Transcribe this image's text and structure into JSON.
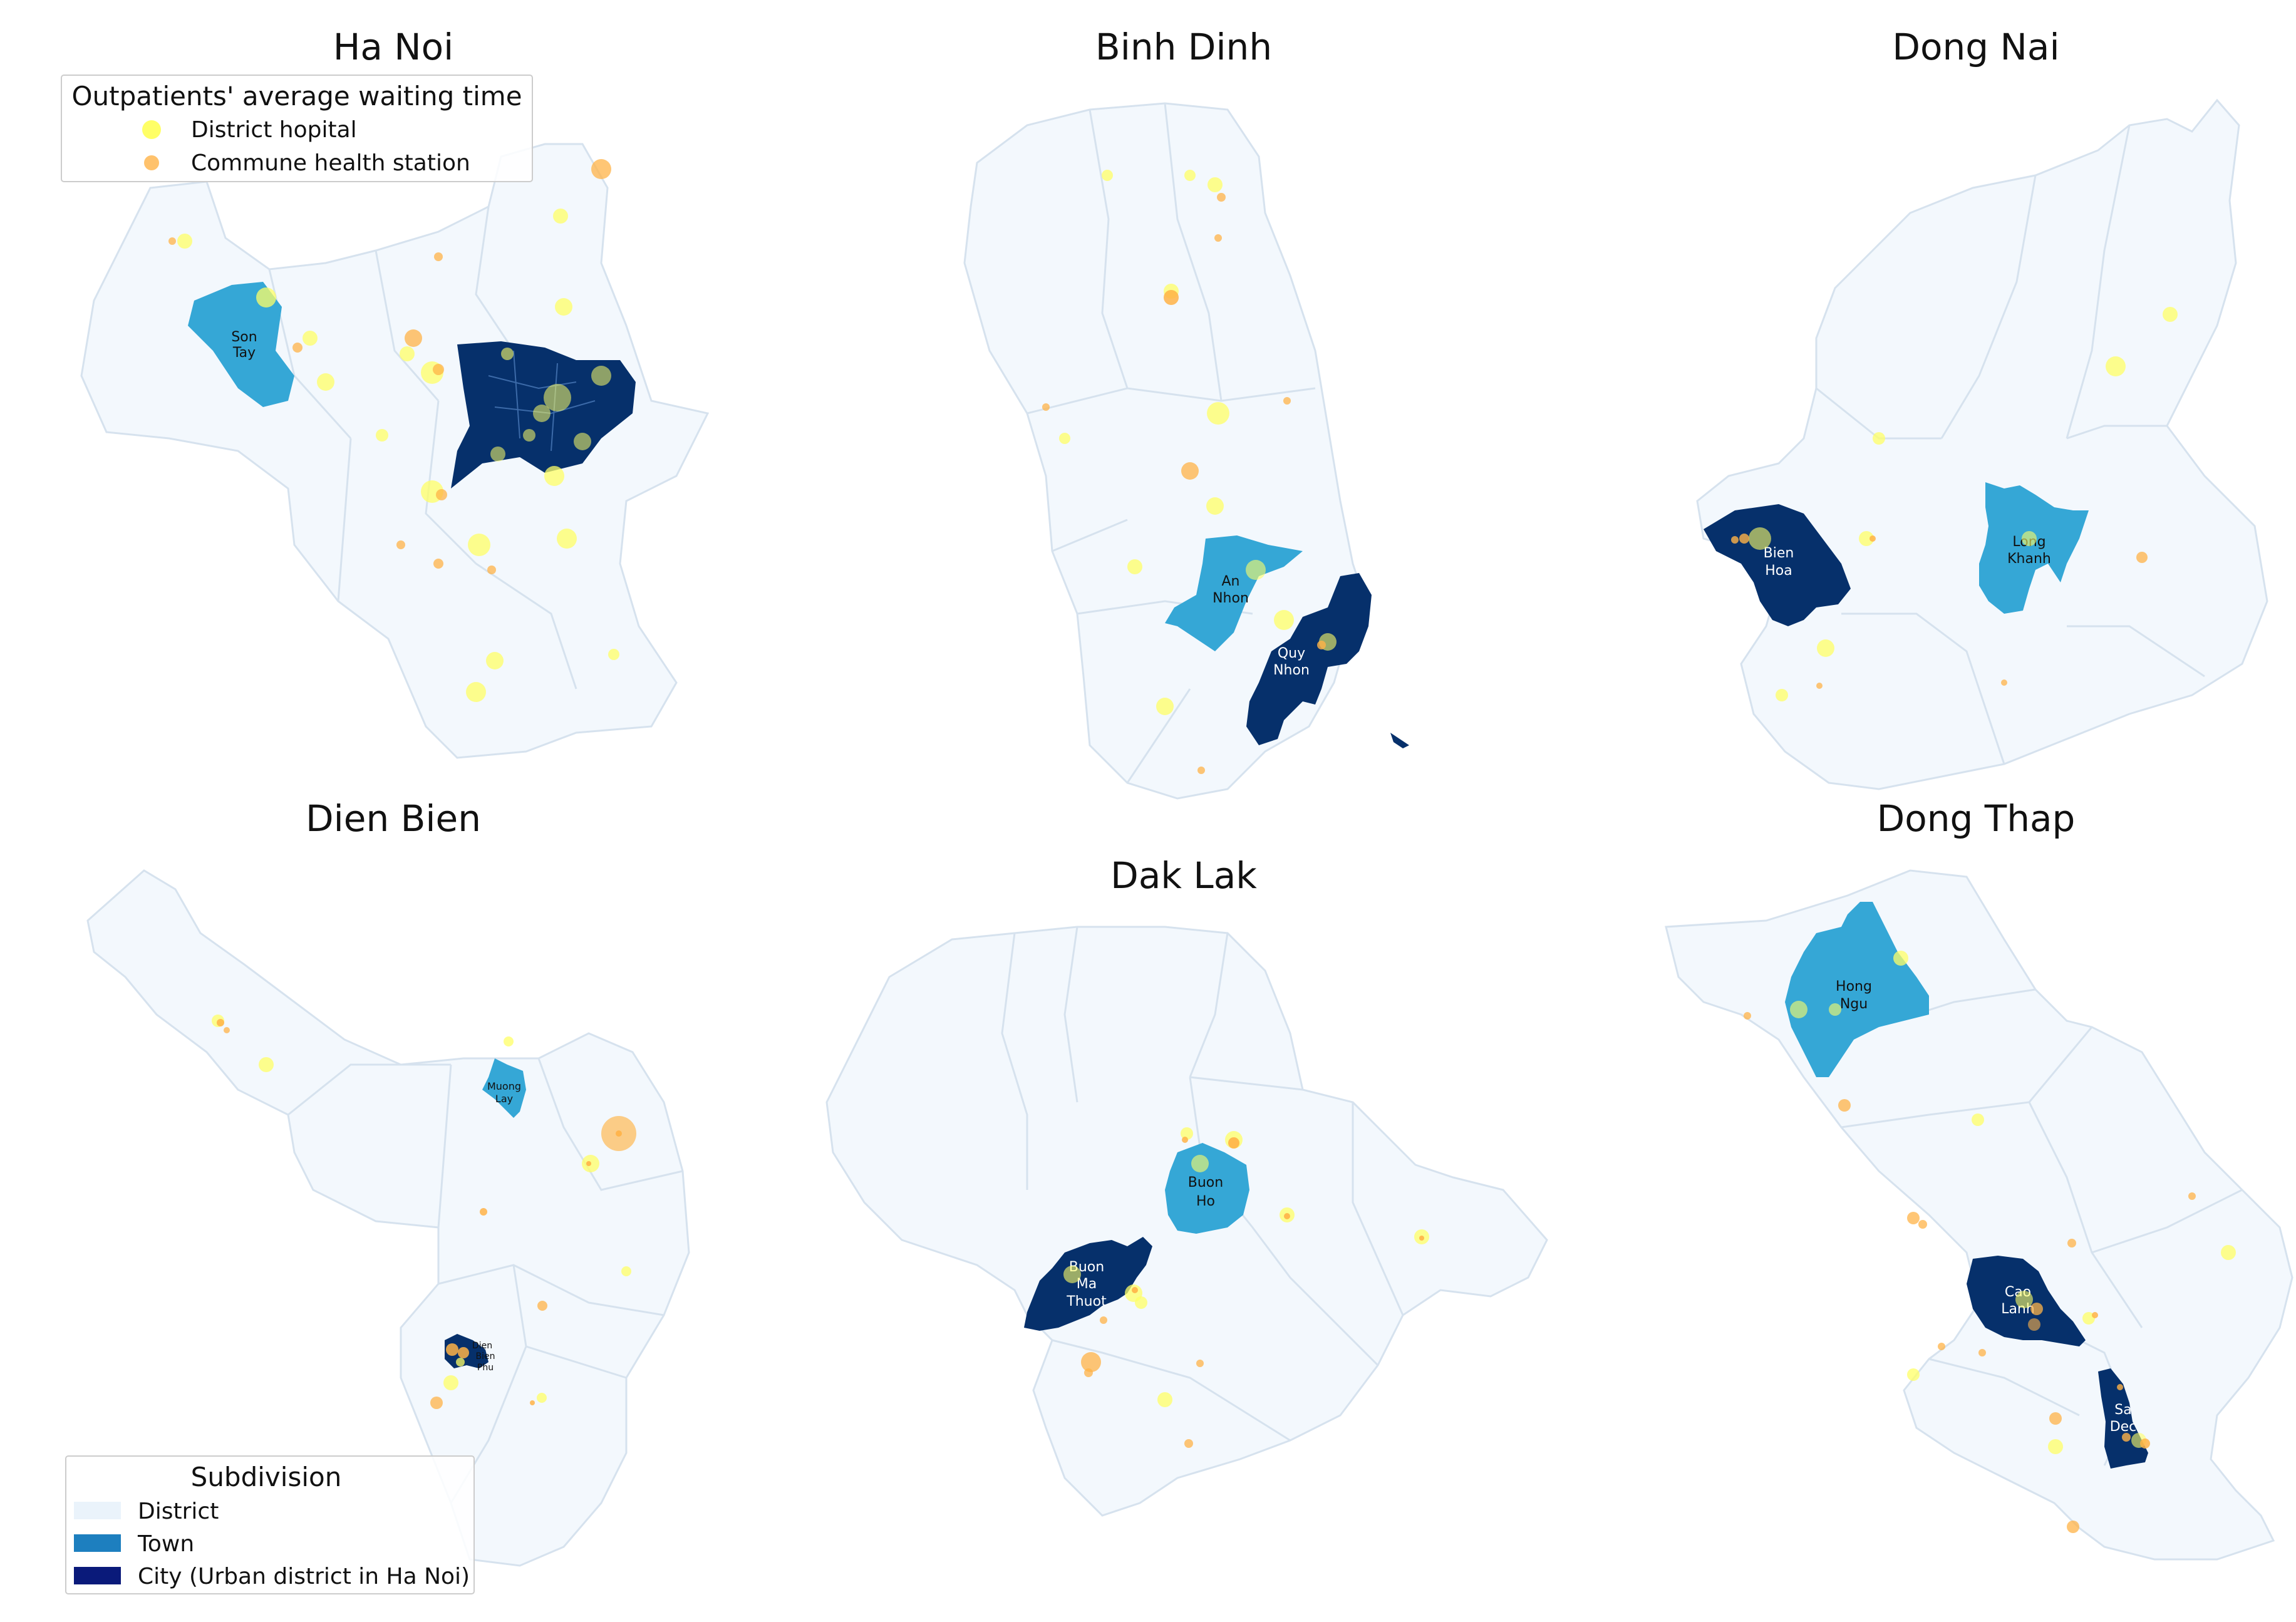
{
  "colors": {
    "district": "#f3f8fd",
    "district_edge": "#d6e2ee",
    "town": "#35a7d6",
    "city": "#06306b",
    "district_hospital": "#ffff66",
    "commune_station": "#ffb347"
  },
  "panels": [
    {
      "id": "ha-noi",
      "title": "Ha Noi",
      "places": [
        {
          "type": "town",
          "label": [
            "Son",
            "Tay"
          ]
        },
        {
          "type": "city",
          "label": []
        }
      ]
    },
    {
      "id": "binh-dinh",
      "title": "Binh Dinh",
      "places": [
        {
          "type": "town",
          "label": [
            "An",
            "Nhon"
          ]
        },
        {
          "type": "city",
          "label": [
            "Quy",
            "Nhon"
          ]
        }
      ]
    },
    {
      "id": "dong-nai",
      "title": "Dong Nai",
      "places": [
        {
          "type": "city",
          "label": [
            "Bien",
            "Hoa"
          ]
        },
        {
          "type": "town",
          "label": [
            "Long",
            "Khanh"
          ]
        }
      ]
    },
    {
      "id": "dien-bien",
      "title": "Dien Bien",
      "places": [
        {
          "type": "town",
          "label": [
            "Muong",
            "Lay"
          ]
        },
        {
          "type": "city",
          "label": [
            "Dien",
            "Bien",
            "Phu"
          ]
        }
      ]
    },
    {
      "id": "dak-lak",
      "title": "Dak Lak",
      "places": [
        {
          "type": "town",
          "label": [
            "Buon",
            "Ho"
          ]
        },
        {
          "type": "city",
          "label": [
            "Buon",
            "Ma",
            "Thuot"
          ]
        }
      ]
    },
    {
      "id": "dong-thap",
      "title": "Dong Thap",
      "places": [
        {
          "type": "town",
          "label": [
            "Hong",
            "Ngu"
          ]
        },
        {
          "type": "city",
          "label": [
            "Cao",
            "Lanh"
          ]
        },
        {
          "type": "city",
          "label": [
            "Sa",
            "Dec"
          ]
        }
      ]
    }
  ],
  "legend_waiting": {
    "title": "Outpatients' average waiting time",
    "items": [
      {
        "label": "District hopital",
        "color": "#ffff66"
      },
      {
        "label": "Commune health station",
        "color": "#ffb347"
      }
    ]
  },
  "legend_subdivision": {
    "title": "Subdivision",
    "items": [
      {
        "label": "District",
        "color": "#eaf3fb"
      },
      {
        "label": "Town",
        "color": "#1d7fbf"
      },
      {
        "label": "City (Urban district in Ha Noi)",
        "color": "#0a1a7a"
      }
    ]
  }
}
